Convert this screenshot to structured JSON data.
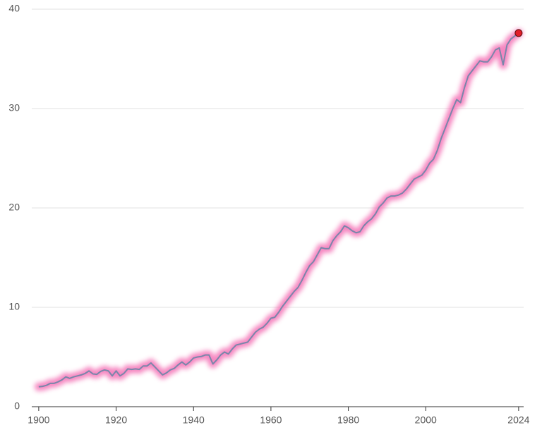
{
  "chart_data": {
    "type": "line",
    "x": [
      1900,
      1901,
      1902,
      1903,
      1904,
      1905,
      1906,
      1907,
      1908,
      1909,
      1910,
      1911,
      1912,
      1913,
      1914,
      1915,
      1916,
      1917,
      1918,
      1919,
      1920,
      1921,
      1922,
      1923,
      1924,
      1925,
      1926,
      1927,
      1928,
      1929,
      1930,
      1931,
      1932,
      1933,
      1934,
      1935,
      1936,
      1937,
      1938,
      1939,
      1940,
      1941,
      1942,
      1943,
      1944,
      1945,
      1946,
      1947,
      1948,
      1949,
      1950,
      1951,
      1952,
      1953,
      1954,
      1955,
      1956,
      1957,
      1958,
      1959,
      1960,
      1961,
      1962,
      1963,
      1964,
      1965,
      1966,
      1967,
      1968,
      1969,
      1970,
      1971,
      1972,
      1973,
      1974,
      1975,
      1976,
      1977,
      1978,
      1979,
      1980,
      1981,
      1982,
      1983,
      1984,
      1985,
      1986,
      1987,
      1988,
      1989,
      1990,
      1991,
      1992,
      1993,
      1994,
      1995,
      1996,
      1997,
      1998,
      1999,
      2000,
      2001,
      2002,
      2003,
      2004,
      2005,
      2006,
      2007,
      2008,
      2009,
      2010,
      2011,
      2012,
      2013,
      2014,
      2015,
      2016,
      2017,
      2018,
      2019,
      2020,
      2021,
      2022,
      2023,
      2024
    ],
    "values": [
      2.0,
      2.05,
      2.15,
      2.35,
      2.35,
      2.5,
      2.7,
      3.0,
      2.85,
      3.0,
      3.1,
      3.2,
      3.35,
      3.6,
      3.3,
      3.25,
      3.55,
      3.7,
      3.6,
      3.1,
      3.6,
      3.1,
      3.35,
      3.8,
      3.75,
      3.8,
      3.75,
      4.1,
      4.1,
      4.4,
      4.0,
      3.6,
      3.2,
      3.4,
      3.7,
      3.85,
      4.2,
      4.5,
      4.2,
      4.5,
      4.9,
      5.0,
      5.05,
      5.2,
      5.2,
      4.3,
      4.7,
      5.2,
      5.5,
      5.3,
      5.8,
      6.2,
      6.3,
      6.4,
      6.5,
      7.0,
      7.5,
      7.8,
      8.0,
      8.4,
      8.9,
      9.0,
      9.5,
      10.1,
      10.6,
      11.1,
      11.6,
      12.0,
      12.7,
      13.5,
      14.2,
      14.6,
      15.3,
      16.0,
      15.9,
      15.9,
      16.7,
      17.2,
      17.6,
      18.2,
      18.0,
      17.7,
      17.5,
      17.6,
      18.2,
      18.6,
      18.9,
      19.4,
      20.1,
      20.5,
      21.0,
      21.2,
      21.2,
      21.3,
      21.5,
      21.9,
      22.4,
      22.9,
      23.1,
      23.3,
      23.8,
      24.5,
      24.9,
      25.8,
      27.0,
      28.0,
      29.0,
      30.0,
      30.9,
      30.6,
      32.1,
      33.3,
      33.8,
      34.3,
      34.8,
      34.7,
      34.7,
      35.2,
      35.9,
      36.1,
      34.4,
      36.4,
      37.0,
      37.3,
      37.6
    ],
    "color": "#7a86aa",
    "glow_color": "#f472b6",
    "marker_color": "#e11d2a",
    "xlim": [
      1898.2,
      2025.3
    ],
    "xticks": [
      1900,
      1920,
      1940,
      1960,
      1980,
      2000,
      2024
    ],
    "ylim": [
      0,
      40
    ],
    "yticks": [
      0,
      10,
      20,
      30,
      40
    ],
    "grid": true
  }
}
